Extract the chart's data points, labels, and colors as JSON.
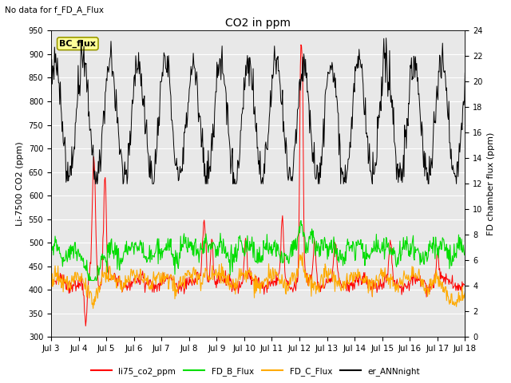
{
  "title": "CO2 in ppm",
  "top_left_text": "No data for f_FD_A_Flux",
  "annotation_box": "BC_flux",
  "ylabel_left": "Li-7500 CO2 (ppm)",
  "ylabel_right": "FD chamber flux (ppm)",
  "ylim_left": [
    300,
    950
  ],
  "ylim_right": [
    0,
    24
  ],
  "xtick_labels": [
    "Jul 3",
    "Jul 4",
    "Jul 5",
    "Jul 6",
    "Jul 7",
    "Jul 8",
    "Jul 9",
    "Jul 10",
    "Jul 11",
    "Jul 12",
    "Jul 13",
    "Jul 14",
    "Jul 15",
    "Jul 16",
    "Jul 17",
    "Jul 18"
  ],
  "legend_entries": [
    "li75_co2_ppm",
    "FD_B_Flux",
    "FD_C_Flux",
    "er_ANNnight"
  ],
  "legend_colors": [
    "#ff0000",
    "#00dd00",
    "#ffaa00",
    "#000000"
  ],
  "line_colors": {
    "li75": "#ff0000",
    "FD_B": "#00dd00",
    "FD_C": "#ffaa00",
    "er_ANN": "#000000"
  },
  "bg_color": "#ffffff",
  "plot_bg": "#e8e8e8",
  "grid_color": "#ffffff",
  "left_ticks": [
    300,
    350,
    400,
    450,
    500,
    550,
    600,
    650,
    700,
    750,
    800,
    850,
    900,
    950
  ],
  "right_ticks": [
    0,
    2,
    4,
    6,
    8,
    10,
    12,
    14,
    16,
    18,
    20,
    22,
    24
  ],
  "figsize": [
    6.4,
    4.8
  ],
  "dpi": 100
}
